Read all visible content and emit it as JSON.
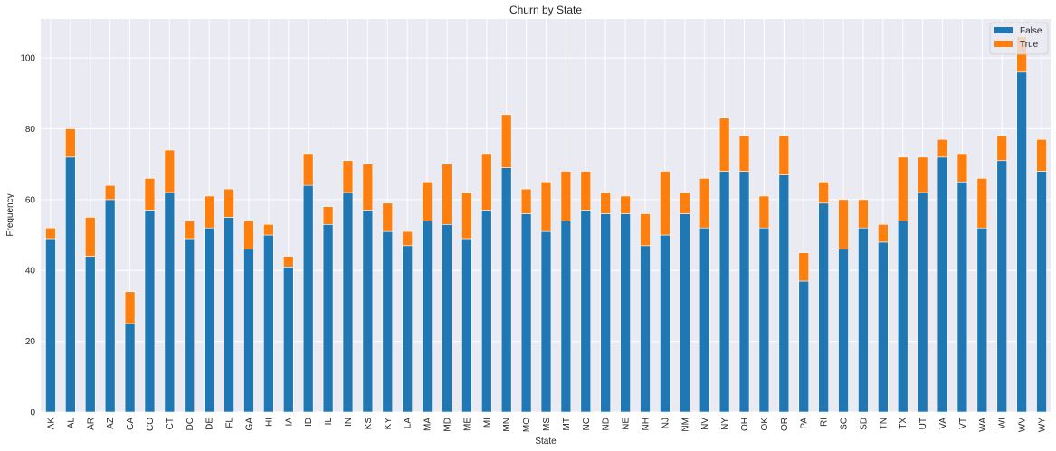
{
  "chart_data": {
    "type": "bar",
    "stacked": true,
    "title": "Churn by State",
    "xlabel": "State",
    "ylabel": "Frequency",
    "ylim": [
      0,
      111
    ],
    "yticks": [
      0,
      20,
      40,
      60,
      80,
      100
    ],
    "grid": true,
    "legend_position": "top-right",
    "categories": [
      "AK",
      "AL",
      "AR",
      "AZ",
      "CA",
      "CO",
      "CT",
      "DC",
      "DE",
      "FL",
      "GA",
      "HI",
      "IA",
      "ID",
      "IL",
      "IN",
      "KS",
      "KY",
      "LA",
      "MA",
      "MD",
      "ME",
      "MI",
      "MN",
      "MO",
      "MS",
      "MT",
      "NC",
      "ND",
      "NE",
      "NH",
      "NJ",
      "NM",
      "NV",
      "NY",
      "OH",
      "OK",
      "OR",
      "PA",
      "RI",
      "SC",
      "SD",
      "TN",
      "TX",
      "UT",
      "VA",
      "VT",
      "WA",
      "WI",
      "WV",
      "WY"
    ],
    "series": [
      {
        "name": "False",
        "color": "#1f77b4",
        "values": [
          49,
          72,
          44,
          60,
          25,
          57,
          62,
          49,
          52,
          55,
          46,
          50,
          41,
          64,
          53,
          62,
          57,
          51,
          47,
          54,
          53,
          49,
          57,
          69,
          56,
          51,
          54,
          57,
          56,
          56,
          47,
          50,
          56,
          52,
          68,
          68,
          52,
          67,
          37,
          59,
          46,
          52,
          48,
          54,
          62,
          72,
          65,
          52,
          71,
          96,
          68
        ]
      },
      {
        "name": "True",
        "color": "#ff7f0e",
        "values": [
          3,
          8,
          11,
          4,
          9,
          9,
          12,
          5,
          9,
          8,
          8,
          3,
          3,
          9,
          5,
          9,
          13,
          8,
          4,
          11,
          17,
          13,
          16,
          15,
          7,
          14,
          14,
          11,
          6,
          5,
          9,
          18,
          6,
          14,
          15,
          10,
          9,
          11,
          8,
          6,
          14,
          8,
          5,
          18,
          10,
          5,
          8,
          14,
          7,
          10,
          9
        ]
      }
    ]
  }
}
